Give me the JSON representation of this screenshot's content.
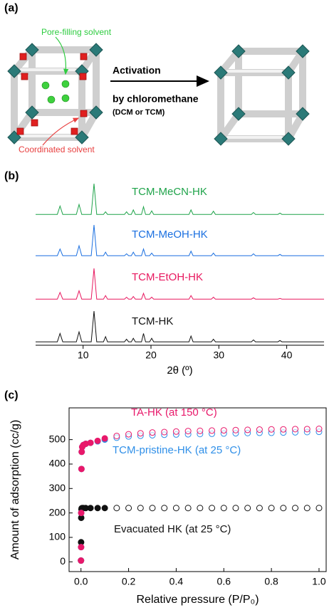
{
  "panel_labels": [
    "(a)",
    "(b)",
    "(c)"
  ],
  "diagram": {
    "pore_label": "Pore-filling solvent",
    "coord_label": "Coordinated solvent",
    "arrow_top": "Activation",
    "arrow_bottom": "by chloromethane",
    "arrow_note": "(DCM or TCM)"
  },
  "chart_data": [
    {
      "type": "line",
      "xlabel": "2θ (º)",
      "xlim": [
        3,
        45.5
      ],
      "xticks": [
        10,
        20,
        30,
        40
      ],
      "ylim": [
        0,
        100
      ],
      "x": [
        3,
        6.2,
        6.6,
        7.0,
        9.0,
        9.4,
        9.8,
        11.2,
        11.6,
        12.0,
        13.0,
        13.3,
        13.6,
        16.1,
        16.4,
        16.7,
        17.1,
        17.4,
        17.7,
        18.6,
        18.9,
        19.2,
        19.8,
        20.1,
        20.4,
        25.6,
        25.9,
        26.2,
        28.9,
        29.2,
        29.5,
        34.8,
        35.1,
        35.4,
        38.7,
        39.0,
        39.3,
        45.5
      ],
      "series": [
        {
          "name": "TCM-MeCN-HK",
          "color": "#1fa34a",
          "values": [
            4,
            4,
            30,
            4,
            4,
            35,
            4,
            4,
            100,
            4,
            4,
            12,
            4,
            4,
            12,
            4,
            4,
            18,
            4,
            4,
            28,
            4,
            4,
            15,
            4,
            4,
            18,
            4,
            4,
            14,
            4,
            4,
            10,
            4,
            4,
            8,
            4,
            4
          ]
        },
        {
          "name": "TCM-MeOH-HK",
          "color": "#1a6fe0",
          "values": [
            4,
            4,
            25,
            4,
            4,
            35,
            4,
            4,
            100,
            4,
            4,
            15,
            4,
            4,
            10,
            4,
            4,
            15,
            4,
            4,
            25,
            4,
            4,
            12,
            4,
            4,
            18,
            4,
            4,
            12,
            4,
            4,
            10,
            4,
            4,
            8,
            4,
            4
          ]
        },
        {
          "name": "TCM-EtOH-HK",
          "color": "#e8185f",
          "values": [
            4,
            4,
            25,
            4,
            4,
            30,
            4,
            4,
            100,
            4,
            4,
            15,
            4,
            4,
            10,
            4,
            4,
            12,
            4,
            4,
            22,
            4,
            4,
            10,
            4,
            4,
            15,
            4,
            4,
            10,
            4,
            4,
            8,
            4,
            4,
            6,
            4,
            4
          ]
        },
        {
          "name": "TCM-HK",
          "color": "#111111",
          "values": [
            4,
            4,
            30,
            4,
            4,
            35,
            4,
            4,
            100,
            4,
            4,
            20,
            4,
            4,
            12,
            4,
            4,
            15,
            4,
            4,
            30,
            4,
            4,
            15,
            4,
            4,
            22,
            4,
            4,
            12,
            4,
            4,
            10,
            4,
            4,
            8,
            4,
            4
          ]
        }
      ]
    },
    {
      "type": "scatter",
      "xlabel": "Relative pressure (P/P₀)",
      "ylabel": "Amount of adsorption (cc/g)",
      "xlim": [
        -0.05,
        1.03
      ],
      "ylim": [
        -40,
        630
      ],
      "xticks": [
        {
          "value": 0,
          "label": "0.0"
        },
        0.2,
        0.4,
        0.6,
        0.8,
        {
          "value": 1,
          "label": "1.0"
        }
      ],
      "yticks": [
        0,
        100,
        200,
        300,
        400,
        500
      ],
      "x": [
        0,
        0.0005,
        0.001,
        0.002,
        0.003,
        0.005,
        0.01,
        0.02,
        0.04,
        0.07,
        0.1,
        0.15,
        0.2,
        0.25,
        0.3,
        0.35,
        0.4,
        0.45,
        0.5,
        0.55,
        0.6,
        0.65,
        0.7,
        0.75,
        0.8,
        0.85,
        0.9,
        0.95,
        1.0
      ],
      "series": [
        {
          "name": "TA-HK (at 150 °C)",
          "color": "#e8186a",
          "values": [
            5,
            60,
            200,
            380,
            450,
            470,
            478,
            483,
            487,
            495,
            505,
            515,
            522,
            526,
            529,
            531,
            533,
            535,
            536,
            537,
            538,
            539,
            540,
            541,
            542,
            542,
            543,
            543,
            544
          ]
        },
        {
          "name": "TCM-pristine-HK (at 25 °C)",
          "color": "#2f8fe8",
          "values": [
            5,
            60,
            200,
            380,
            450,
            470,
            478,
            483,
            487,
            493,
            500,
            508,
            513,
            516,
            518,
            520,
            521,
            522,
            523,
            524,
            525,
            526,
            527,
            528,
            528,
            529,
            530,
            531,
            532
          ]
        },
        {
          "name": "Evacuated HK (at 25 °C)",
          "color": "#111111",
          "values": [
            5,
            80,
            180,
            215,
            219,
            220,
            220,
            220,
            220,
            220,
            220,
            220,
            220,
            220,
            220,
            220,
            220,
            220,
            220,
            220,
            220,
            220,
            220,
            220,
            220,
            220,
            220,
            220,
            220
          ]
        }
      ]
    }
  ]
}
